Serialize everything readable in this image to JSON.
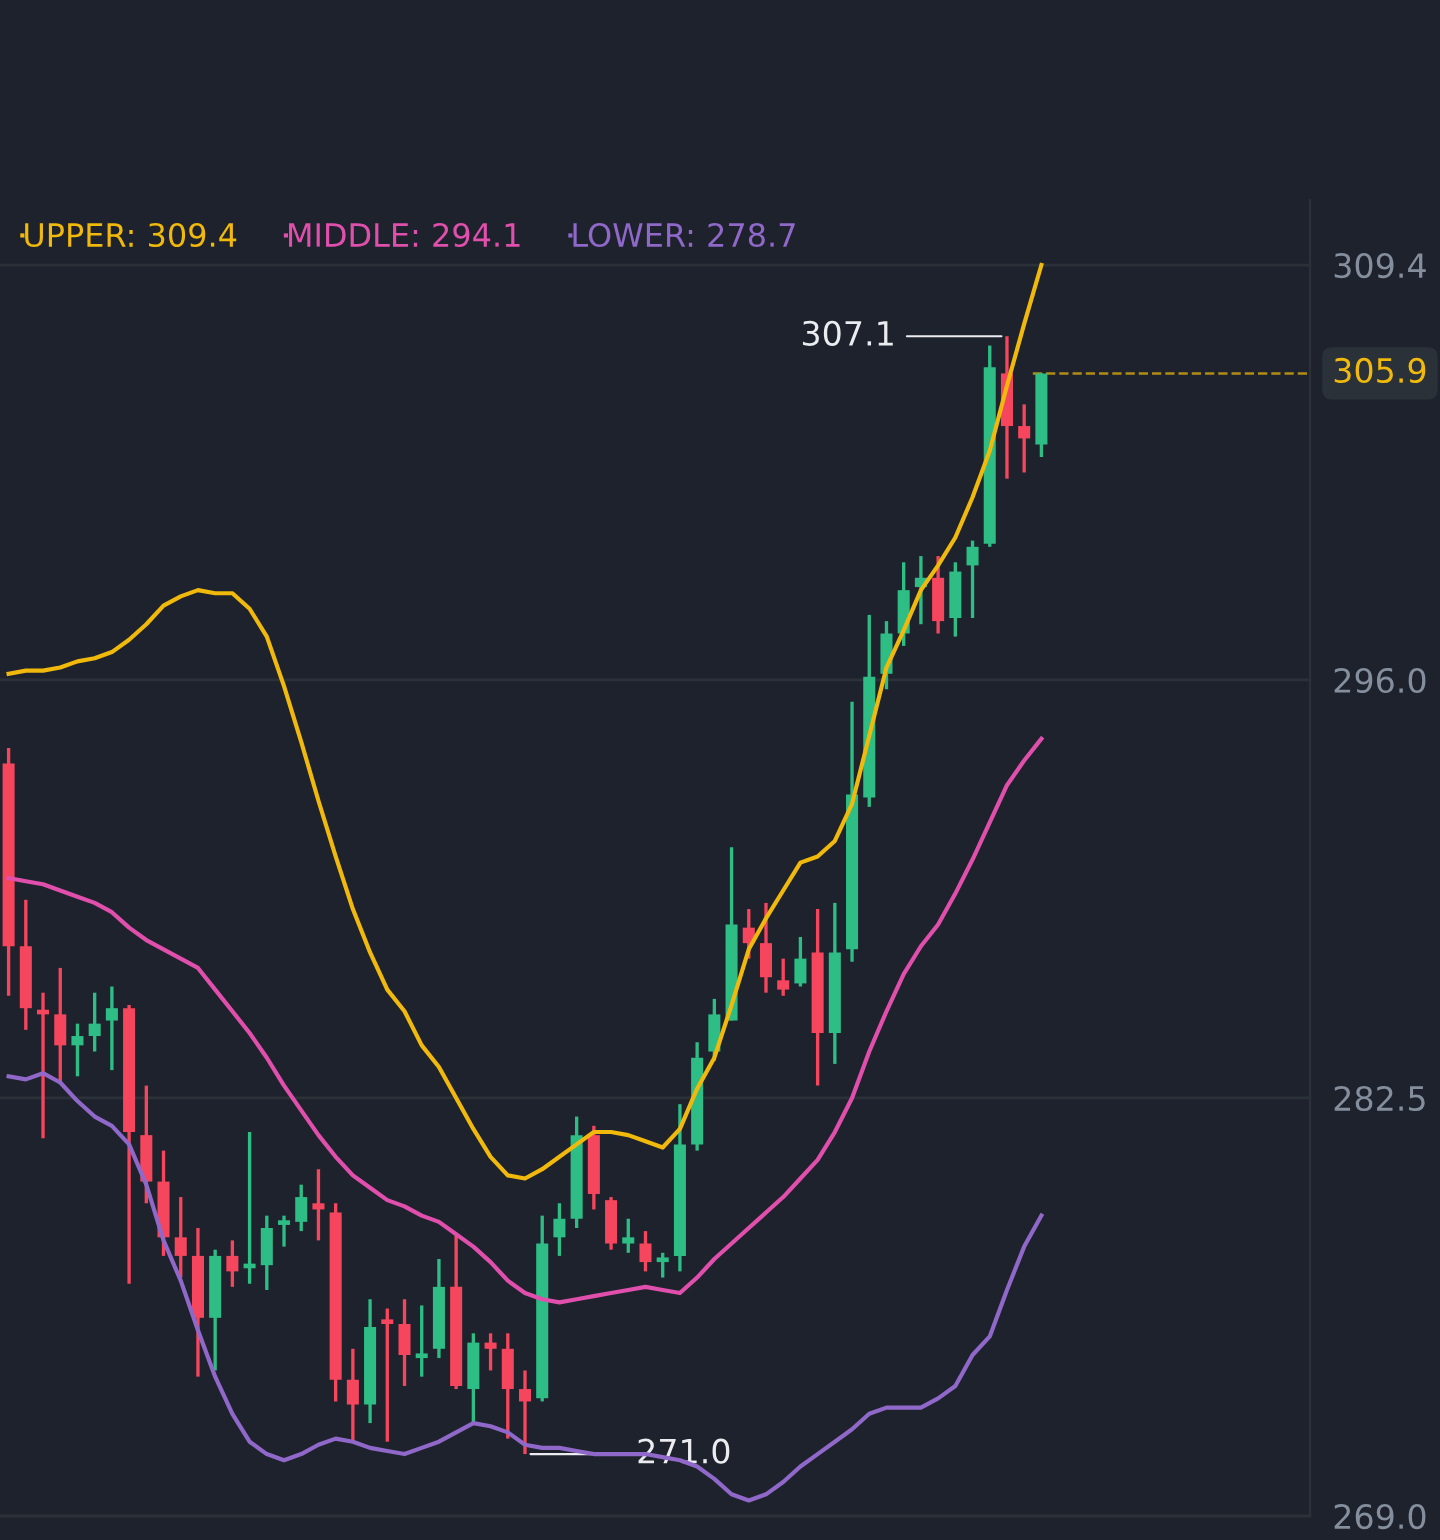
{
  "chart_data": {
    "type": "candlestick",
    "categories": [
      null,
      null,
      null,
      null,
      null,
      null,
      null,
      null,
      null,
      null,
      null,
      null,
      null,
      null,
      null,
      null,
      null,
      null,
      null,
      null,
      null,
      null,
      null,
      null,
      null,
      null,
      null,
      null,
      null,
      null,
      null,
      null,
      null,
      null,
      null,
      null,
      null,
      null,
      null,
      null,
      null,
      null,
      null,
      null,
      null,
      null,
      null,
      null,
      null,
      null,
      null,
      null,
      null,
      null,
      null,
      null,
      null,
      null,
      null,
      null,
      null
    ],
    "ohlc": [
      [
        293.3,
        293.8,
        285.8,
        287.4
      ],
      [
        287.4,
        288.9,
        284.7,
        285.4
      ],
      [
        285.3,
        285.9,
        281.2,
        285.2
      ],
      [
        285.2,
        286.7,
        283.0,
        284.2
      ],
      [
        284.2,
        284.9,
        283.2,
        284.5
      ],
      [
        284.5,
        285.9,
        284.0,
        284.9
      ],
      [
        285.0,
        286.1,
        283.4,
        285.4
      ],
      [
        285.4,
        285.5,
        276.5,
        281.4
      ],
      [
        281.3,
        282.9,
        279.1,
        279.8
      ],
      [
        279.8,
        280.8,
        277.4,
        278.0
      ],
      [
        278.0,
        279.3,
        276.7,
        277.4
      ],
      [
        277.4,
        278.3,
        273.5,
        275.4
      ],
      [
        275.4,
        277.6,
        273.7,
        277.4
      ],
      [
        277.4,
        277.9,
        276.4,
        276.9
      ],
      [
        277.0,
        281.4,
        276.5,
        277.1
      ],
      [
        277.1,
        278.7,
        276.3,
        278.3
      ],
      [
        278.4,
        278.7,
        277.7,
        278.5
      ],
      [
        278.5,
        279.7,
        278.2,
        279.3
      ],
      [
        279.1,
        280.2,
        277.9,
        278.9
      ],
      [
        278.8,
        279.1,
        272.7,
        273.4
      ],
      [
        273.4,
        274.4,
        271.4,
        272.6
      ],
      [
        272.6,
        276.0,
        272.0,
        275.1
      ],
      [
        275.3,
        275.7,
        271.4,
        275.2
      ],
      [
        275.2,
        276.0,
        273.2,
        274.2
      ],
      [
        274.1,
        275.8,
        273.5,
        274.2
      ],
      [
        274.4,
        277.3,
        274.1,
        276.4
      ],
      [
        276.4,
        278.1,
        273.1,
        273.2
      ],
      [
        273.1,
        274.9,
        272.0,
        274.6
      ],
      [
        274.6,
        274.9,
        273.7,
        274.4
      ],
      [
        274.4,
        274.9,
        271.5,
        273.1
      ],
      [
        273.1,
        273.7,
        271.0,
        272.7
      ],
      [
        272.8,
        278.7,
        272.7,
        277.8
      ],
      [
        278.0,
        279.1,
        277.4,
        278.6
      ],
      [
        278.6,
        281.9,
        278.3,
        281.3
      ],
      [
        281.3,
        281.6,
        278.9,
        279.4
      ],
      [
        279.2,
        279.3,
        277.6,
        277.8
      ],
      [
        277.8,
        278.6,
        277.5,
        278.0
      ],
      [
        277.8,
        278.2,
        276.9,
        277.2
      ],
      [
        277.2,
        277.5,
        276.7,
        277.3
      ],
      [
        277.4,
        282.3,
        276.9,
        281.0
      ],
      [
        281.0,
        284.3,
        280.8,
        283.8
      ],
      [
        284.0,
        285.7,
        283.7,
        285.2
      ],
      [
        285.0,
        290.6,
        285.0,
        288.1
      ],
      [
        288.0,
        288.6,
        287.0,
        287.5
      ],
      [
        287.5,
        288.8,
        285.9,
        286.4
      ],
      [
        286.3,
        287.0,
        285.8,
        286.0
      ],
      [
        286.2,
        287.7,
        286.1,
        287.0
      ],
      [
        287.2,
        288.6,
        282.9,
        284.6
      ],
      [
        284.6,
        288.8,
        283.6,
        287.2
      ],
      [
        287.3,
        295.3,
        286.9,
        292.3
      ],
      [
        292.2,
        298.1,
        291.9,
        296.1
      ],
      [
        296.2,
        297.9,
        295.7,
        297.5
      ],
      [
        297.5,
        299.8,
        297.1,
        298.9
      ],
      [
        299.0,
        300.0,
        297.8,
        299.3
      ],
      [
        299.3,
        300.0,
        297.5,
        297.9
      ],
      [
        298.0,
        299.8,
        297.4,
        299.5
      ],
      [
        299.7,
        300.5,
        298.0,
        300.3
      ],
      [
        300.4,
        306.8,
        300.3,
        306.1
      ],
      [
        305.9,
        307.1,
        302.5,
        304.2
      ],
      [
        304.2,
        304.9,
        302.7,
        303.8
      ],
      [
        303.6,
        305.9,
        303.2,
        305.9
      ]
    ],
    "colors": [
      "#f6465d",
      "#f6465d",
      "#f6465d",
      "#f6465d",
      "#2ebd85",
      "#2ebd85",
      "#2ebd85",
      "#f6465d",
      "#f6465d",
      "#f6465d",
      "#f6465d",
      "#f6465d",
      "#2ebd85",
      "#f6465d",
      "#2ebd85",
      "#2ebd85",
      "#2ebd85",
      "#2ebd85",
      "#f6465d",
      "#f6465d",
      "#f6465d",
      "#2ebd85",
      "#f6465d",
      "#f6465d",
      "#2ebd85",
      "#2ebd85",
      "#f6465d",
      "#2ebd85",
      "#f6465d",
      "#f6465d",
      "#f6465d",
      "#2ebd85",
      "#2ebd85",
      "#2ebd85",
      "#f6465d",
      "#f6465d",
      "#2ebd85",
      "#f6465d",
      "#2ebd85",
      "#2ebd85",
      "#2ebd85",
      "#2ebd85",
      "#2ebd85",
      "#f6465d",
      "#f6465d",
      "#f6465d",
      "#2ebd85",
      "#f6465d",
      "#2ebd85",
      "#2ebd85",
      "#2ebd85",
      "#2ebd85",
      "#2ebd85",
      "#2ebd85",
      "#f6465d",
      "#2ebd85",
      "#2ebd85",
      "#2ebd85",
      "#f6465d",
      "#f6465d",
      "#2ebd85"
    ],
    "series": [
      {
        "type": "line",
        "name": "UPPER: 309.4",
        "color": "#f0b90b",
        "values": [
          296.2,
          296.3,
          296.3,
          296.4,
          296.6,
          296.7,
          296.9,
          297.3,
          297.8,
          298.4,
          298.7,
          298.9,
          298.8,
          298.8,
          298.3,
          297.4,
          295.8,
          294.0,
          292.1,
          290.3,
          288.6,
          287.2,
          286.0,
          285.3,
          284.2,
          283.5,
          282.5,
          281.5,
          280.6,
          280.0,
          279.9,
          280.2,
          280.6,
          281.0,
          281.4,
          281.4,
          281.3,
          281.1,
          280.9,
          281.5,
          282.8,
          283.8,
          285.5,
          287.3,
          288.3,
          289.2,
          290.1,
          290.3,
          290.8,
          292.0,
          294.2,
          296.4,
          297.6,
          298.9,
          299.7,
          300.6,
          301.9,
          303.4,
          305.5,
          307.5,
          309.4
        ]
      },
      {
        "type": "line",
        "name": "MIDDLE: 294.1",
        "color": "#e14fad",
        "values": [
          289.6,
          289.5,
          289.4,
          289.2,
          289.0,
          288.8,
          288.5,
          288.0,
          287.6,
          287.3,
          287.0,
          286.7,
          286.0,
          285.3,
          284.6,
          283.8,
          282.9,
          282.1,
          281.3,
          280.6,
          280.0,
          279.6,
          279.2,
          279.0,
          278.7,
          278.5,
          278.1,
          277.7,
          277.2,
          276.6,
          276.2,
          276.0,
          275.9,
          276.0,
          276.1,
          276.2,
          276.3,
          276.4,
          276.3,
          276.2,
          276.7,
          277.3,
          277.8,
          278.3,
          278.8,
          279.3,
          279.9,
          280.5,
          281.4,
          282.5,
          284.0,
          285.3,
          286.5,
          287.4,
          288.1,
          289.1,
          290.2,
          291.4,
          292.6,
          293.4,
          294.1
        ]
      },
      {
        "type": "line",
        "name": "LOWER: 278.7",
        "color": "#8f68c9",
        "values": [
          283.2,
          283.1,
          283.3,
          283.0,
          282.4,
          281.9,
          281.6,
          281.0,
          279.7,
          277.9,
          276.6,
          275.0,
          273.5,
          272.3,
          271.4,
          271.0,
          270.8,
          271.0,
          271.3,
          271.5,
          271.4,
          271.2,
          271.1,
          271.0,
          271.2,
          271.4,
          271.7,
          272.0,
          271.9,
          271.7,
          271.3,
          271.2,
          271.2,
          271.1,
          271.0,
          271.0,
          271.0,
          271.0,
          270.9,
          270.8,
          270.6,
          270.2,
          269.7,
          269.5,
          269.7,
          270.1,
          270.6,
          271.0,
          271.4,
          271.8,
          272.3,
          272.5,
          272.5,
          272.5,
          272.8,
          273.2,
          274.2,
          274.8,
          276.3,
          277.7,
          278.7
        ]
      }
    ],
    "ylim": [
      269.0,
      311.5
    ],
    "yticks": [
      309.4,
      {
        "value": 296,
        "label": "296.0"
      },
      282.5,
      {
        "value": 269,
        "label": "269.0"
      }
    ],
    "tick_labels": "y",
    "grid": "y",
    "legend": "top left",
    "ref_lines": [
      {
        "axis": "y",
        "value": 305.9,
        "label": "305.9",
        "color": "#f0b90b",
        "line_style": "dashed"
      }
    ],
    "annotations": [
      "307.1",
      "271.0"
    ]
  }
}
